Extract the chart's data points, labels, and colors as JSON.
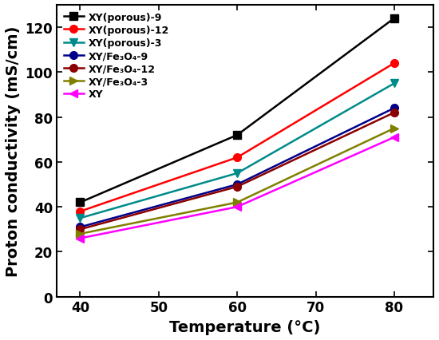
{
  "title": "",
  "xlabel": "Temperature (°C)",
  "ylabel": "Proton conductivity (mS/cm)",
  "x": [
    40,
    60,
    80
  ],
  "series": [
    {
      "label": "XY(porous)-9",
      "values": [
        42,
        72,
        124
      ],
      "color": "#000000",
      "marker": "s",
      "linestyle": "-"
    },
    {
      "label": "XY(porous)-12",
      "values": [
        38,
        62,
        104
      ],
      "color": "#ff0000",
      "marker": "o",
      "linestyle": "-"
    },
    {
      "label": "XY(porous)-3",
      "values": [
        35,
        55,
        95
      ],
      "color": "#008B8B",
      "marker": "v",
      "linestyle": "-"
    },
    {
      "label": "XY/Fe₃O₄-9",
      "values": [
        31,
        50,
        84
      ],
      "color": "#00008B",
      "marker": "o",
      "linestyle": "-"
    },
    {
      "label": "XY/Fe₃O₄-12",
      "values": [
        30,
        49,
        82
      ],
      "color": "#8B0000",
      "marker": "o",
      "linestyle": "-"
    },
    {
      "label": "XY/Fe₃O₄-3",
      "values": [
        28,
        42,
        75
      ],
      "color": "#808000",
      "marker": ">",
      "linestyle": "-"
    },
    {
      "label": "XY",
      "values": [
        26,
        40,
        71
      ],
      "color": "#ff00ff",
      "marker": "<",
      "linestyle": "-"
    }
  ],
  "xlim": [
    37,
    85
  ],
  "ylim": [
    0,
    130
  ],
  "xticks": [
    40,
    50,
    60,
    70,
    80
  ],
  "yticks": [
    0,
    20,
    40,
    60,
    80,
    100,
    120
  ],
  "legend_loc": "upper left",
  "legend_fontsize": 9,
  "axis_label_fontsize": 14,
  "tick_fontsize": 12,
  "linewidth": 1.8,
  "markersize": 7
}
